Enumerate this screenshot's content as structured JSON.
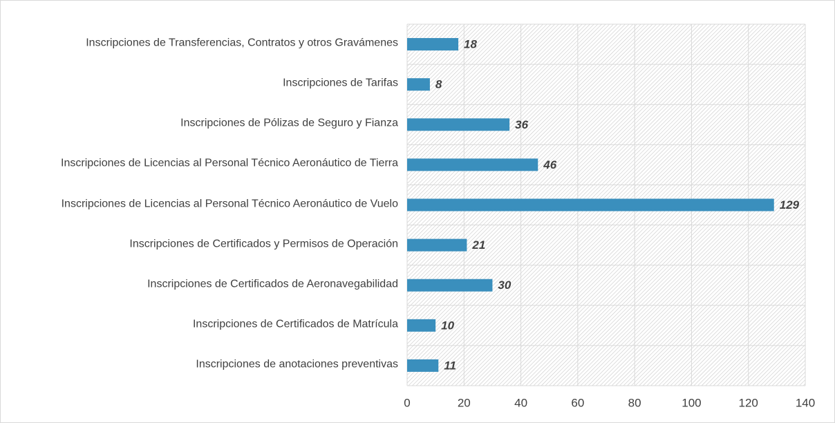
{
  "chart_data": {
    "type": "hbar",
    "categories": [
      "Inscripciones de Transferencias, Contratos y otros Gravámenes",
      "Inscripciones de Tarifas",
      "Inscripciones de Pólizas de Seguro y Fianza",
      "Inscripciones de Licencias al Personal Técnico Aeronáutico de Tierra",
      "Inscripciones de Licencias al Personal Técnico Aeronáutico de Vuelo",
      "Inscripciones de Certificados y Permisos de Operación",
      "Inscripciones de Certificados de Aeronavegabilidad",
      "Inscripciones de Certificados de Matrícula",
      "Inscripciones de anotaciones preventivas"
    ],
    "values": [
      18,
      8,
      36,
      46,
      129,
      21,
      30,
      10,
      11
    ],
    "color": "#3a8fbd",
    "xlim": [
      0,
      140
    ],
    "xticks": [
      0,
      20,
      40,
      60,
      80,
      100,
      120,
      140
    ],
    "grid": true
  }
}
